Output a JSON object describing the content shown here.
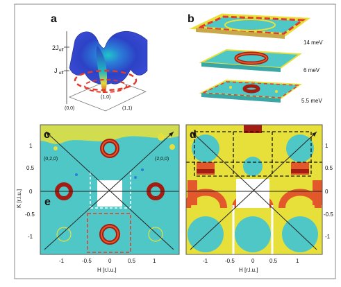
{
  "figure": {
    "panel_labels": {
      "a": "a",
      "b": "b",
      "c": "c",
      "d": "d",
      "e": "e"
    },
    "panel_a": {
      "axis_labels": [
        "2J",
        "eff",
        "J",
        "eff",
        "(0,0)",
        "(1,0)",
        "(1,1)"
      ]
    },
    "panel_b": {
      "energy_labels": [
        "14 meV",
        "6 meV",
        "5.5 meV"
      ]
    },
    "panel_c": {
      "ylabel": "K [r.l.u.]",
      "xlabel": "H [r.l.u.]",
      "x_ticks": [
        "-1",
        "-0.5",
        "0",
        "0.5",
        "1"
      ],
      "y_ticks": [
        "1",
        "0.5",
        "0",
        "-0.5",
        "-1"
      ],
      "corner_labels": [
        "(0,2,0)",
        "(2,0,0)"
      ]
    },
    "panel_d": {
      "xlabel": "H [r.l.u.]",
      "x_ticks": [
        "-1",
        "-0.5",
        "0",
        "0.5",
        "1"
      ],
      "y_ticks": [
        "1",
        "0.5",
        "0",
        "-0.5",
        "-1"
      ]
    },
    "colors": {
      "map_bg": "#4fc7c6",
      "map_yellow": "#e8e03a",
      "ring_dark": "#a31d12",
      "ring_orange": "#e2582a",
      "surface_blue": "#2c42c6",
      "dash_red": "#e23b2b"
    }
  }
}
